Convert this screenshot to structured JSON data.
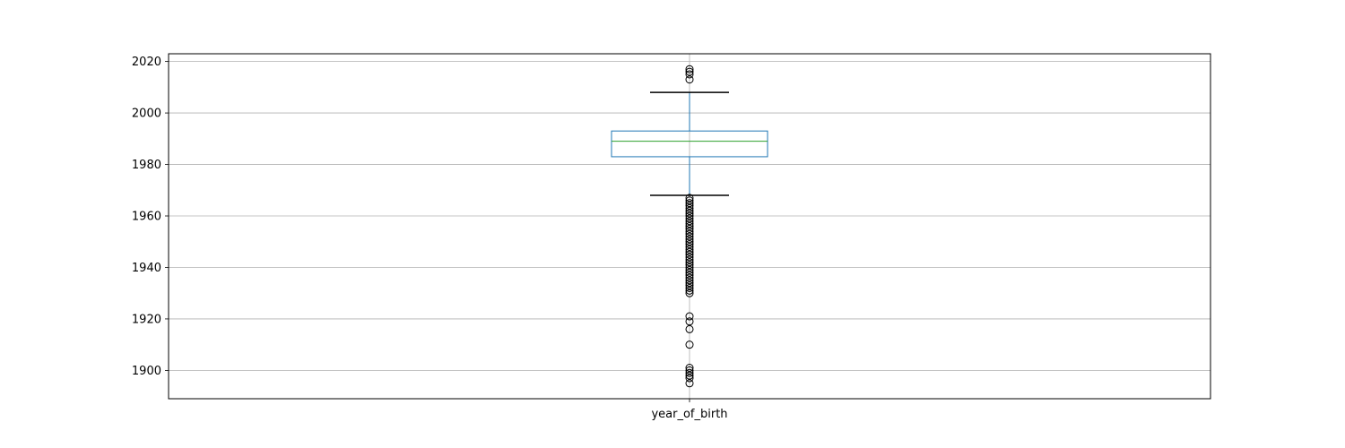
{
  "chart_data": {
    "type": "box",
    "categories": [
      "year_of_birth"
    ],
    "title": "",
    "xlabel": "",
    "ylabel": "",
    "ylim": [
      1889,
      2023
    ],
    "yticks": [
      1900,
      1920,
      1940,
      1960,
      1980,
      2000,
      2020
    ],
    "grid": true,
    "boxes": [
      {
        "category": "year_of_birth",
        "whisker_low": 1968,
        "q1": 1983,
        "median": 1989,
        "q3": 1993,
        "whisker_high": 2008,
        "outliers": [
          1895,
          1897,
          1898,
          1899,
          1900,
          1901,
          1910,
          1916,
          1919,
          1921,
          1930,
          1931,
          1932,
          1933,
          1934,
          1935,
          1936,
          1937,
          1938,
          1939,
          1940,
          1941,
          1942,
          1943,
          1944,
          1945,
          1946,
          1947,
          1948,
          1949,
          1950,
          1951,
          1952,
          1953,
          1954,
          1955,
          1956,
          1957,
          1958,
          1959,
          1960,
          1961,
          1962,
          1963,
          1964,
          1965,
          1966,
          1967,
          2013,
          2015,
          2016,
          2017
        ]
      }
    ],
    "colors": {
      "box": "#1f77b4",
      "median": "#2ca02c",
      "whisker_cap": "#000000",
      "grid": "#b0b0b0"
    }
  }
}
